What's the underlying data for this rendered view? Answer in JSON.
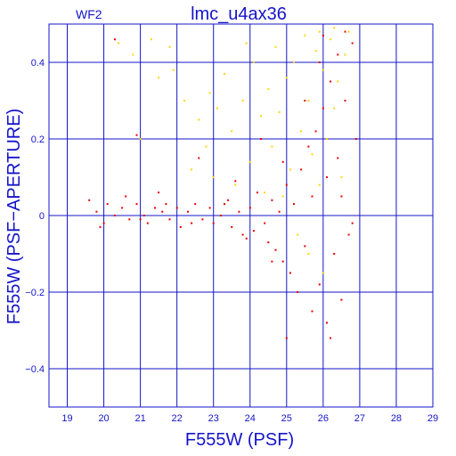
{
  "chart_data": {
    "type": "scatter",
    "title": "lmc_u4ax36",
    "corner_label": "WF2",
    "xlabel": "F555W (PSF)",
    "ylabel": "F555W (PSF−APERTURE)",
    "xlim": [
      18.5,
      29.0
    ],
    "ylim": [
      -0.5,
      0.5
    ],
    "xticks": [
      19,
      20,
      21,
      22,
      23,
      24,
      25,
      26,
      27,
      28,
      29
    ],
    "yticks": [
      -0.4,
      -0.2,
      0,
      0.2,
      0.4
    ],
    "ytick_labels": [
      "−0.4",
      "−0.2",
      "0",
      "0.2",
      "0.4"
    ],
    "grid": true,
    "series": [
      {
        "color": "#ffd400",
        "points": [
          [
            20.4,
            0.45
          ],
          [
            20.8,
            0.42
          ],
          [
            21.3,
            0.46
          ],
          [
            21.5,
            0.36
          ],
          [
            21.9,
            0.38
          ],
          [
            22.2,
            0.3
          ],
          [
            22.6,
            0.25
          ],
          [
            22.9,
            0.32
          ],
          [
            23.1,
            0.28
          ],
          [
            23.5,
            0.22
          ],
          [
            23.8,
            0.3
          ],
          [
            23.9,
            0.45
          ],
          [
            24.1,
            0.4
          ],
          [
            24.3,
            0.26
          ],
          [
            24.5,
            0.33
          ],
          [
            24.6,
            0.18
          ],
          [
            24.8,
            0.27
          ],
          [
            25.0,
            0.36
          ],
          [
            25.1,
            0.12
          ],
          [
            25.2,
            0.4
          ],
          [
            25.4,
            0.22
          ],
          [
            25.5,
            0.47
          ],
          [
            25.6,
            0.3
          ],
          [
            25.7,
            0.16
          ],
          [
            25.8,
            0.43
          ],
          [
            25.9,
            0.08
          ],
          [
            26.0,
            0.38
          ],
          [
            26.1,
            0.2
          ],
          [
            26.2,
            0.46
          ],
          [
            26.3,
            0.28
          ],
          [
            26.4,
            0.35
          ],
          [
            26.5,
            0.1
          ],
          [
            26.6,
            0.42
          ],
          [
            22.4,
            0.12
          ],
          [
            23.0,
            0.1
          ],
          [
            24.0,
            0.14
          ],
          [
            24.9,
            0.05
          ],
          [
            25.3,
            -0.05
          ],
          [
            25.6,
            -0.1
          ],
          [
            26.0,
            -0.15
          ],
          [
            21.0,
            0.2
          ],
          [
            22.8,
            0.18
          ],
          [
            23.6,
            0.08
          ],
          [
            24.4,
            0.06
          ],
          [
            26.7,
            0.48
          ],
          [
            25.9,
            0.48
          ],
          [
            26.3,
            0.49
          ],
          [
            24.7,
            0.44
          ],
          [
            23.3,
            0.37
          ],
          [
            21.8,
            0.44
          ]
        ]
      },
      {
        "color": "#e80000",
        "points": [
          [
            19.6,
            0.04
          ],
          [
            19.8,
            0.01
          ],
          [
            20.0,
            -0.02
          ],
          [
            20.1,
            0.03
          ],
          [
            20.3,
            0.0
          ],
          [
            20.5,
            0.02
          ],
          [
            20.7,
            -0.01
          ],
          [
            20.9,
            0.03
          ],
          [
            21.1,
            0.0
          ],
          [
            21.2,
            -0.02
          ],
          [
            21.4,
            0.02
          ],
          [
            21.6,
            0.01
          ],
          [
            21.8,
            -0.01
          ],
          [
            22.0,
            0.02
          ],
          [
            22.1,
            -0.03
          ],
          [
            22.3,
            0.01
          ],
          [
            22.5,
            0.03
          ],
          [
            22.7,
            -0.01
          ],
          [
            22.9,
            0.02
          ],
          [
            23.0,
            -0.02
          ],
          [
            23.2,
            0.0
          ],
          [
            23.4,
            0.04
          ],
          [
            23.5,
            -0.03
          ],
          [
            23.7,
            0.01
          ],
          [
            23.8,
            -0.05
          ],
          [
            24.0,
            0.02
          ],
          [
            24.1,
            -0.04
          ],
          [
            24.2,
            0.06
          ],
          [
            24.4,
            -0.02
          ],
          [
            24.5,
            -0.07
          ],
          [
            24.6,
            0.04
          ],
          [
            24.7,
            -0.09
          ],
          [
            24.8,
            0.01
          ],
          [
            24.9,
            -0.12
          ],
          [
            25.0,
            0.08
          ],
          [
            25.1,
            -0.15
          ],
          [
            25.2,
            0.03
          ],
          [
            25.3,
            -0.2
          ],
          [
            25.4,
            0.12
          ],
          [
            25.5,
            -0.08
          ],
          [
            25.6,
            0.18
          ],
          [
            25.7,
            -0.25
          ],
          [
            25.8,
            0.22
          ],
          [
            25.9,
            -0.18
          ],
          [
            26.0,
            0.28
          ],
          [
            26.1,
            -0.28
          ],
          [
            26.2,
            0.35
          ],
          [
            26.3,
            -0.1
          ],
          [
            26.4,
            0.42
          ],
          [
            26.5,
            0.05
          ],
          [
            26.6,
            0.3
          ],
          [
            26.7,
            -0.05
          ],
          [
            26.8,
            0.45
          ],
          [
            26.9,
            0.2
          ],
          [
            26.2,
            -0.32
          ],
          [
            25.9,
            0.4
          ],
          [
            26.6,
            0.48
          ],
          [
            26.0,
            0.47
          ],
          [
            20.3,
            0.46
          ],
          [
            20.9,
            0.21
          ],
          [
            21.5,
            0.06
          ],
          [
            22.6,
            0.15
          ],
          [
            23.6,
            0.09
          ],
          [
            24.3,
            0.2
          ],
          [
            25.0,
            -0.32
          ],
          [
            25.5,
            0.3
          ],
          [
            26.4,
            0.15
          ],
          [
            26.8,
            -0.02
          ],
          [
            26.1,
            0.1
          ],
          [
            25.7,
            0.05
          ],
          [
            24.9,
            0.14
          ],
          [
            24.6,
            -0.12
          ],
          [
            23.9,
            -0.06
          ],
          [
            23.3,
            0.03
          ],
          [
            22.4,
            -0.02
          ],
          [
            21.7,
            0.03
          ],
          [
            21.0,
            -0.01
          ],
          [
            20.6,
            0.05
          ],
          [
            19.9,
            -0.03
          ],
          [
            26.5,
            -0.22
          ]
        ]
      }
    ]
  }
}
